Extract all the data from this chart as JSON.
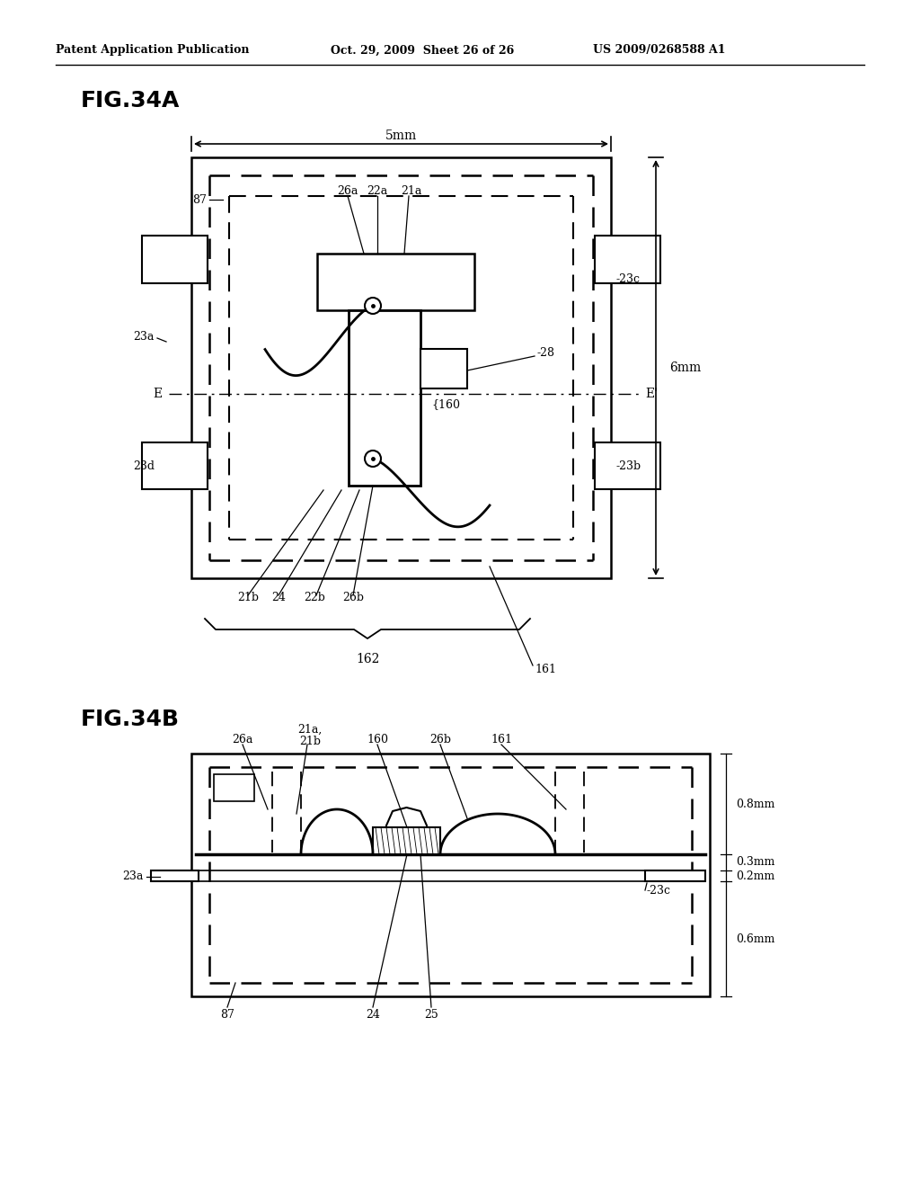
{
  "header_left": "Patent Application Publication",
  "header_mid": "Oct. 29, 2009  Sheet 26 of 26",
  "header_right": "US 2009/0268588 A1",
  "fig34a_title": "FIG.34A",
  "fig34b_title": "FIG.34B",
  "bg_color": "#ffffff",
  "line_color": "#000000"
}
